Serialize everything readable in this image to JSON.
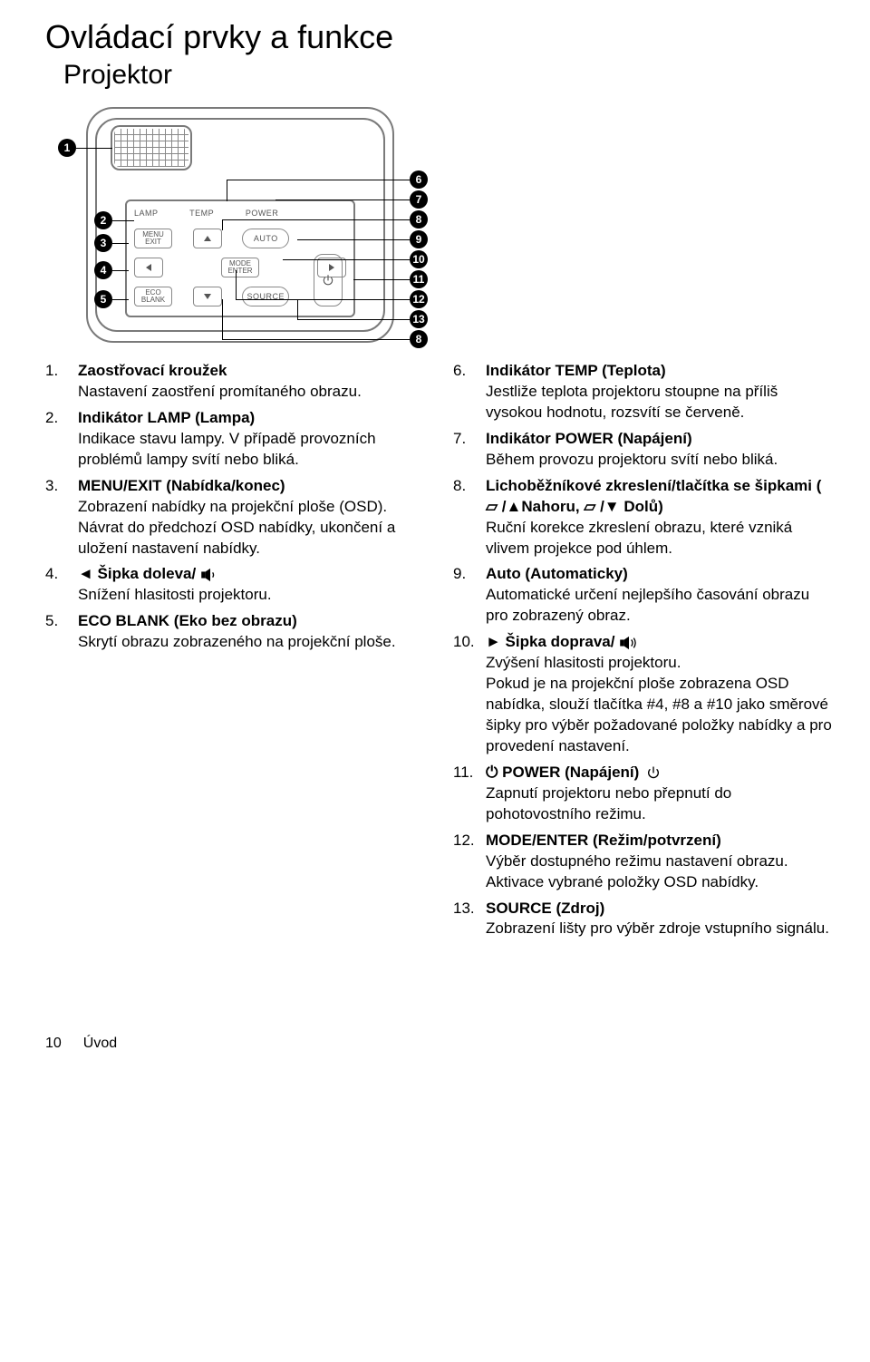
{
  "heading": "Ovládací prvky a funkce",
  "subheading": "Projektor",
  "panel_labels": {
    "lamp": "LAMP",
    "temp": "TEMP",
    "power": "POWER",
    "menu_exit_top": "MENU",
    "menu_exit_bot": "EXIT",
    "auto": "AUTO",
    "mode_top": "MODE",
    "mode_bot": "ENTER",
    "eco_top": "ECO",
    "eco_bot": "BLANK",
    "source": "SOURCE"
  },
  "callouts_left": [
    "1",
    "2",
    "3",
    "4",
    "5"
  ],
  "callouts_right": [
    "6",
    "7",
    "8",
    "9",
    "10",
    "11",
    "12",
    "13",
    "8"
  ],
  "left_items": [
    {
      "n": "1.",
      "title": "Zaostřovací kroužek",
      "desc": "Nastavení zaostření promítaného obrazu."
    },
    {
      "n": "2.",
      "title": "Indikátor LAMP (Lampa)",
      "desc": "Indikace stavu lampy. V případě provozních problémů lampy svítí nebo bliká."
    },
    {
      "n": "3.",
      "title": "MENU/EXIT (Nabídka/konec)",
      "desc": "Zobrazení nabídky na projekční ploše (OSD). Návrat do předchozí OSD nabídky, ukončení a uložení nastavení nabídky."
    },
    {
      "n": "4.",
      "title": "◄ Šipka doleva/",
      "desc": "Snížení hlasitosti projektoru.",
      "icon": "vol-down"
    },
    {
      "n": "5.",
      "title": "ECO BLANK (Eko bez obrazu)",
      "desc": "Skrytí obrazu zobrazeného na projekční ploše."
    }
  ],
  "right_items": [
    {
      "n": "6.",
      "title": "Indikátor TEMP (Teplota)",
      "desc": "Jestliže teplota projektoru stoupne na příliš vysokou hodnotu, rozsvítí se červeně."
    },
    {
      "n": "7.",
      "title": "Indikátor POWER (Napájení)",
      "desc": "Během provozu projektoru svítí nebo bliká."
    },
    {
      "n": "8.",
      "title": "Lichoběžníkové zkreslení/tlačítka se šipkami ( ▱ /▲Nahoru, ▱ /▼ Dolů)",
      "desc": "Ruční korekce zkreslení obrazu, které vzniká vlivem projekce pod úhlem."
    },
    {
      "n": "9.",
      "title": "Auto (Automaticky)",
      "desc": "Automatické určení nejlepšího časování obrazu pro zobrazený obraz."
    },
    {
      "n": "10.",
      "title": "► Šipka doprava/",
      "desc": "Zvýšení hlasitosti projektoru.\nPokud je na projekční ploše zobrazena OSD nabídka, slouží tlačítka #4, #8 a #10 jako směrové šipky pro výběr požadované položky nabídky a pro provedení nastavení.",
      "icon": "vol-up"
    },
    {
      "n": "11.",
      "title": "⏻ POWER (Napájení)",
      "desc": "Zapnutí projektoru nebo přepnutí do pohotovostního režimu.",
      "icon": "power"
    },
    {
      "n": "12.",
      "title": "MODE/ENTER (Režim/potvrzení)",
      "desc": "Výběr dostupného režimu nastavení obrazu.\nAktivace vybrané položky OSD nabídky."
    },
    {
      "n": "13.",
      "title": "SOURCE (Zdroj)",
      "desc": "Zobrazení lišty pro výběr zdroje vstupního signálu."
    }
  ],
  "footer": {
    "page": "10",
    "section": "Úvod"
  },
  "colors": {
    "text": "#000000",
    "diagram_stroke": "#7a7a7a",
    "callout_bg": "#000000",
    "callout_fg": "#ffffff"
  }
}
